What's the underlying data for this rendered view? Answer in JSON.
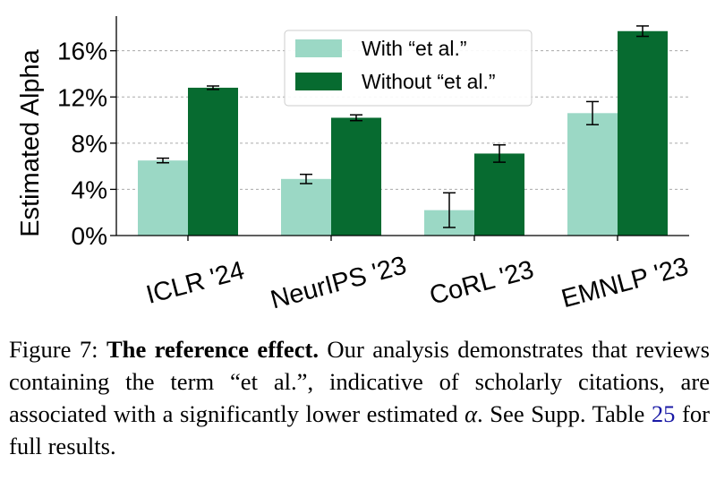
{
  "chart_data": {
    "type": "bar",
    "ylabel": "Estimated Alpha",
    "ylim": [
      0,
      19
    ],
    "yticks": [
      0,
      4,
      8,
      12,
      16
    ],
    "ytick_labels": [
      "0%",
      "4%",
      "8%",
      "12%",
      "16%"
    ],
    "grid": "horizontal dashed",
    "categories": [
      "ICLR '24",
      "NeurIPS '23",
      "CoRL '23",
      "EMNLP '23"
    ],
    "series": [
      {
        "name": "With “et al.”",
        "color": "#9bd8c5",
        "values": [
          6.5,
          4.9,
          2.2,
          10.6
        ],
        "errors": [
          0.2,
          0.4,
          1.5,
          1.0
        ]
      },
      {
        "name": "Without “et al.”",
        "color": "#076b30",
        "values": [
          12.8,
          10.2,
          7.1,
          17.7
        ],
        "errors": [
          0.15,
          0.25,
          0.75,
          0.45
        ]
      }
    ],
    "legend_position": "top-center"
  },
  "caption": {
    "prefix": "Figure 7: ",
    "bold": "The reference effect.",
    "text1": " Our analysis demonstrates that reviews containing the term “et al.”, indicative of scholarly citations, are associated with a significantly lower estimated ",
    "alpha": "α",
    "text2": ". See Supp. Table ",
    "table_ref": "25",
    "text3": " for full results."
  }
}
